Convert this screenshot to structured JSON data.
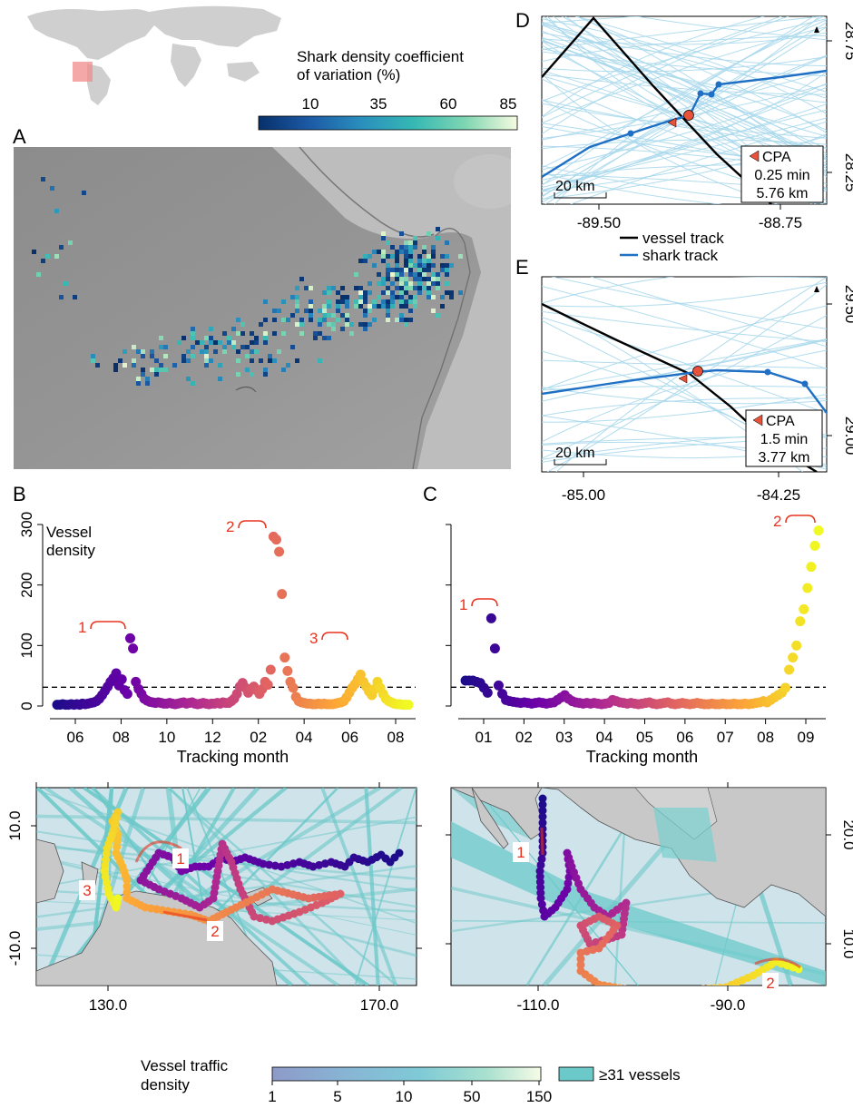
{
  "panels": {
    "A": "A",
    "B": "B",
    "C": "C",
    "D": "D",
    "E": "E"
  },
  "colors": {
    "map_land": "#9a9a9a",
    "map_ocean": "#bcbcbc",
    "land_gray": "#c8c8c8",
    "ocean_light": "#cfe3ea",
    "lane_teal": "#6cc9c9",
    "vessel_line": "#000000",
    "shark_line": "#1f6fc4",
    "vessel_lightblue": "#a9d8ec",
    "cpa_red": "#e8513a",
    "annot_red": "#e8331f",
    "threshold": "#000000"
  },
  "shark_legend": {
    "title_line1": "Shark density coefficient",
    "title_line2": "of variation (%)",
    "ticks": [
      "10",
      "35",
      "60",
      "85"
    ],
    "colors": [
      "#08306b",
      "#1c5ba6",
      "#2a8fbd",
      "#36b8b4",
      "#7fd6b2",
      "#f1f7d0"
    ]
  },
  "vessel_legend": {
    "title_line1": "Vessel traffic",
    "title_line2": "density",
    "ticks": [
      "1",
      "5",
      "10",
      "50",
      "150"
    ],
    "colors": [
      "#8e9ac9",
      "#87b7d5",
      "#7fcad6",
      "#a9e1cf",
      "#f3f9e1"
    ],
    "box_label": "≥31 vessels"
  },
  "panelD": {
    "xticks": [
      "-89.50",
      "-88.75"
    ],
    "yticks": [
      "28.75",
      "28.25"
    ],
    "cpa": {
      "label": "CPA",
      "time": "0.25 min",
      "dist": "5.76 km"
    },
    "scale": "20 km"
  },
  "panelE": {
    "xticks": [
      "-85.00",
      "-84.25"
    ],
    "yticks": [
      "29.50",
      "29.00"
    ],
    "cpa": {
      "label": "CPA",
      "time": "1.5 min",
      "dist": "3.77 km"
    },
    "scale": "20 km"
  },
  "track_legend": {
    "vessel": "vessel track",
    "shark": "shark track"
  },
  "chart_data": [
    {
      "panel": "B",
      "type": "scatter",
      "ylabel_line1": "Vessel",
      "ylabel_line2": "density",
      "xlabel": "Tracking month",
      "ylim": [
        0,
        300
      ],
      "yticks": [
        0,
        100,
        200,
        300
      ],
      "xtick_labels": [
        "06",
        "08",
        "10",
        "12",
        "02",
        "04",
        "06",
        "08"
      ],
      "threshold": 31,
      "annotations": [
        "1",
        "2",
        "3"
      ],
      "palette": [
        "#1b0c8a",
        "#6a00a8",
        "#b12a90",
        "#e16462",
        "#fca636",
        "#f0f921"
      ],
      "values": [
        2,
        2,
        3,
        2,
        2,
        3,
        2,
        3,
        2,
        4,
        3,
        4,
        5,
        6,
        8,
        12,
        18,
        25,
        32,
        40,
        46,
        54,
        34,
        44,
        26,
        20,
        112,
        95,
        40,
        28,
        20,
        12,
        9,
        7,
        6,
        5,
        6,
        5,
        4,
        4,
        5,
        4,
        3,
        4,
        5,
        6,
        4,
        5,
        6,
        4,
        3,
        4,
        5,
        4,
        3,
        4,
        4,
        5,
        4,
        6,
        5,
        5,
        8,
        12,
        20,
        32,
        38,
        30,
        22,
        28,
        32,
        26,
        20,
        28,
        40,
        35,
        60,
        280,
        275,
        255,
        185,
        80,
        58,
        40,
        30,
        15,
        8,
        6,
        5,
        4,
        4,
        3,
        3,
        4,
        3,
        4,
        3,
        3,
        3,
        4,
        5,
        6,
        8,
        14,
        22,
        30,
        36,
        44,
        52,
        40,
        32,
        24,
        18,
        28,
        40,
        30,
        20,
        12,
        8,
        6,
        4,
        3,
        3,
        2,
        2,
        2
      ]
    },
    {
      "panel": "C",
      "type": "scatter",
      "xlabel": "Tracking month",
      "ylim": [
        0,
        300
      ],
      "xtick_labels": [
        "01",
        "02",
        "03",
        "04",
        "05",
        "06",
        "07",
        "08",
        "09"
      ],
      "threshold": 31,
      "annotations": [
        "1",
        "2"
      ],
      "palette": [
        "#1b0c8a",
        "#6a00a8",
        "#b12a90",
        "#e16462",
        "#fca636",
        "#f0f921"
      ],
      "values": [
        42,
        42,
        42,
        40,
        38,
        30,
        22,
        145,
        95,
        34,
        20,
        10,
        8,
        7,
        6,
        5,
        6,
        5,
        4,
        5,
        6,
        5,
        4,
        5,
        6,
        10,
        14,
        18,
        12,
        8,
        6,
        5,
        4,
        5,
        4,
        5,
        4,
        3,
        4,
        5,
        10,
        8,
        6,
        5,
        4,
        5,
        4,
        3,
        4,
        5,
        6,
        4,
        3,
        4,
        5,
        6,
        4,
        3,
        4,
        5,
        4,
        3,
        4,
        5,
        4,
        3,
        3,
        4,
        3,
        3,
        4,
        3,
        3,
        4,
        3,
        3,
        4,
        3,
        4,
        5,
        6,
        8,
        6,
        10,
        14,
        18,
        22,
        30,
        60,
        80,
        100,
        140,
        160,
        195,
        230,
        265,
        290
      ]
    },
    {
      "panel": "bottom-left map",
      "type": "scatter",
      "xticks": [
        "130.0",
        "170.0"
      ],
      "yticks": [
        "10.0",
        "-10.0"
      ],
      "annotations": [
        "1",
        "2",
        "3"
      ]
    },
    {
      "panel": "bottom-right map",
      "type": "scatter",
      "xticks": [
        "-110.0",
        "-90.0"
      ],
      "yticks": [
        "20.0",
        "10.0"
      ],
      "annotations": [
        "1",
        "2"
      ]
    }
  ]
}
